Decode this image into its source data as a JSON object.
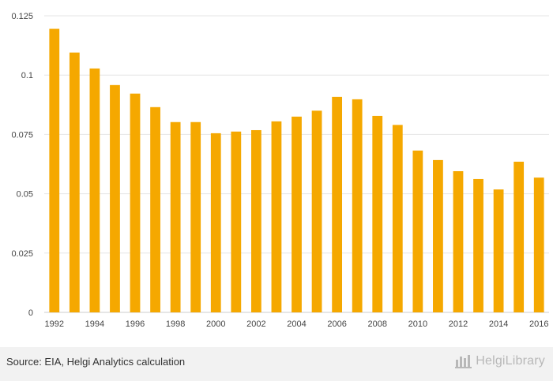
{
  "chart_data": {
    "type": "bar",
    "title": "",
    "xlabel": "",
    "ylabel": "",
    "ylim": [
      0,
      0.125
    ],
    "yticks": [
      "0",
      "0.025",
      "0.05",
      "0.075",
      "0.1",
      "0.125"
    ],
    "ytick_values": [
      0,
      0.025,
      0.05,
      0.075,
      0.1,
      0.125
    ],
    "categories": [
      "1992",
      "1993",
      "1994",
      "1995",
      "1996",
      "1997",
      "1998",
      "1999",
      "2000",
      "2001",
      "2002",
      "2003",
      "2004",
      "2005",
      "2006",
      "2007",
      "2008",
      "2009",
      "2010",
      "2011",
      "2012",
      "2013",
      "2014",
      "2015",
      "2016"
    ],
    "xtick_labels": [
      "1992",
      "",
      "1994",
      "",
      "1996",
      "",
      "1998",
      "",
      "2000",
      "",
      "2002",
      "",
      "2004",
      "",
      "2006",
      "",
      "2008",
      "",
      "2010",
      "",
      "2012",
      "",
      "2014",
      "",
      "2016"
    ],
    "values": [
      0.1195,
      0.1095,
      0.1028,
      0.0958,
      0.0922,
      0.0865,
      0.0802,
      0.0802,
      0.0755,
      0.0762,
      0.0768,
      0.0805,
      0.0825,
      0.085,
      0.0908,
      0.0898,
      0.0828,
      0.079,
      0.0682,
      0.0642,
      0.0595,
      0.0562,
      0.0518,
      0.0635,
      0.0568
    ],
    "grid": true,
    "bar_color": "#f5a800"
  },
  "footer": {
    "source": "Source: EIA, Helgi Analytics calculation",
    "brand": "HelgiLibrary"
  }
}
